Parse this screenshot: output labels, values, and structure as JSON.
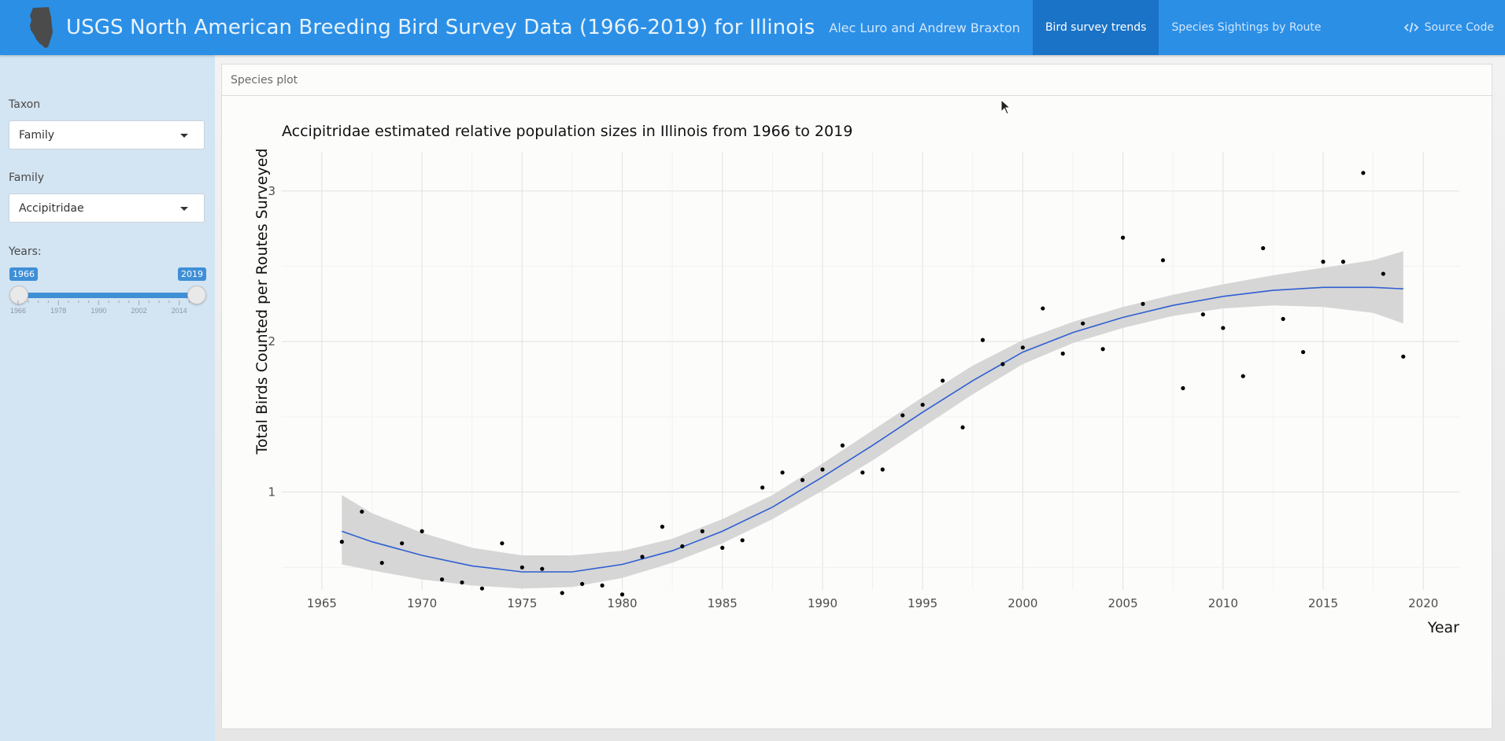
{
  "navbar": {
    "app_title": "USGS North American Breeding Bird Survey Data (1966-2019) for Illinois",
    "authors": "Alec Luro and Andrew Braxton",
    "tabs": [
      {
        "label": "Bird survey trends",
        "active": true
      },
      {
        "label": "Species Sightings by Route",
        "active": false
      }
    ],
    "source_code_label": "Source Code",
    "logo_icon": "illinois-state-silhouette-icon",
    "source_code_icon": "code-icon",
    "colors": {
      "navbar": "#2b8fe6",
      "active_tab": "#1a73c7"
    }
  },
  "sidebar": {
    "taxon_label": "Taxon",
    "taxon_value": "Family",
    "family_label": "Family",
    "family_value": "Accipitridae",
    "years_label": "Years:",
    "years_slider": {
      "min": 1966,
      "max": 2019,
      "from": 1966,
      "to": 2019,
      "from_label": "1966",
      "to_label": "2019",
      "tick_labels": [
        "1966",
        "1978",
        "1990",
        "2002",
        "2014"
      ]
    },
    "colors": {
      "background": "#d3e4f2",
      "slider": "#3f8fd6"
    }
  },
  "panel": {
    "title": "Species plot"
  },
  "chart_data": {
    "type": "scatter",
    "title": "Accipitridae estimated relative population sizes in Illinois from 1966 to 2019",
    "xlabel": "Year",
    "ylabel": "Total Birds Counted per Routes Surveyed",
    "xlim": [
      1963,
      2021.8
    ],
    "ylim": [
      0.35,
      3.26
    ],
    "x_ticks": [
      1965,
      1970,
      1975,
      1980,
      1985,
      1990,
      1995,
      2000,
      2005,
      2010,
      2015,
      2020
    ],
    "x_tick_labels": [
      "1965",
      "1970",
      "1975",
      "1980",
      "1985",
      "1990",
      "1995",
      "2000",
      "2005",
      "2010",
      "2015",
      "2020"
    ],
    "y_ticks": [
      1,
      2,
      3
    ],
    "y_tick_labels": [
      "1",
      "2",
      "3"
    ],
    "grid": true,
    "points": {
      "name": "",
      "x": [
        1966,
        1967,
        1968,
        1969,
        1970,
        1971,
        1972,
        1973,
        1974,
        1975,
        1976,
        1977,
        1978,
        1979,
        1980,
        1981,
        1982,
        1983,
        1984,
        1985,
        1986,
        1987,
        1988,
        1989,
        1990,
        1991,
        1992,
        1993,
        1994,
        1995,
        1996,
        1997,
        1998,
        1999,
        2000,
        2001,
        2002,
        2003,
        2004,
        2005,
        2006,
        2007,
        2008,
        2009,
        2010,
        2011,
        2012,
        2013,
        2014,
        2015,
        2016,
        2017,
        2018,
        2019
      ],
      "y": [
        0.67,
        0.87,
        0.53,
        0.66,
        0.74,
        0.42,
        0.4,
        0.36,
        0.66,
        0.5,
        0.49,
        0.33,
        0.39,
        0.38,
        0.32,
        0.57,
        0.77,
        0.64,
        0.74,
        0.63,
        0.68,
        1.03,
        1.13,
        1.08,
        1.15,
        1.31,
        1.13,
        1.15,
        1.51,
        1.58,
        1.74,
        1.43,
        2.01,
        1.85,
        1.96,
        2.22,
        1.92,
        2.12,
        1.95,
        2.69,
        2.25,
        2.54,
        1.69,
        2.18,
        2.09,
        1.77,
        2.62,
        2.15,
        1.93,
        2.53,
        2.53,
        3.12,
        2.45,
        1.9
      ],
      "color": "#000000"
    },
    "smooth": {
      "name": "",
      "x": [
        1966,
        1967.5,
        1970,
        1972.5,
        1975,
        1977.5,
        1980,
        1982.5,
        1985,
        1987.5,
        1990,
        1992.5,
        1995,
        1997.5,
        2000,
        2002.5,
        2005,
        2007.5,
        2010,
        2012.5,
        2015,
        2017.5,
        2019
      ],
      "y": [
        0.74,
        0.67,
        0.58,
        0.51,
        0.47,
        0.47,
        0.52,
        0.61,
        0.74,
        0.9,
        1.1,
        1.31,
        1.53,
        1.74,
        1.93,
        2.06,
        2.16,
        2.24,
        2.3,
        2.34,
        2.36,
        2.36,
        2.35
      ],
      "lower": [
        0.52,
        0.48,
        0.42,
        0.38,
        0.36,
        0.37,
        0.43,
        0.53,
        0.66,
        0.82,
        1.01,
        1.21,
        1.43,
        1.65,
        1.85,
        1.99,
        2.09,
        2.17,
        2.22,
        2.24,
        2.23,
        2.19,
        2.12
      ],
      "upper": [
        0.98,
        0.86,
        0.73,
        0.63,
        0.58,
        0.58,
        0.61,
        0.69,
        0.82,
        0.98,
        1.19,
        1.41,
        1.63,
        1.84,
        2.01,
        2.13,
        2.23,
        2.31,
        2.38,
        2.44,
        2.49,
        2.54,
        2.6
      ],
      "line_color": "#2f5fd1",
      "band_color": "#d4d4d4"
    }
  },
  "cursor": {
    "icon": "mouse-pointer-icon"
  }
}
